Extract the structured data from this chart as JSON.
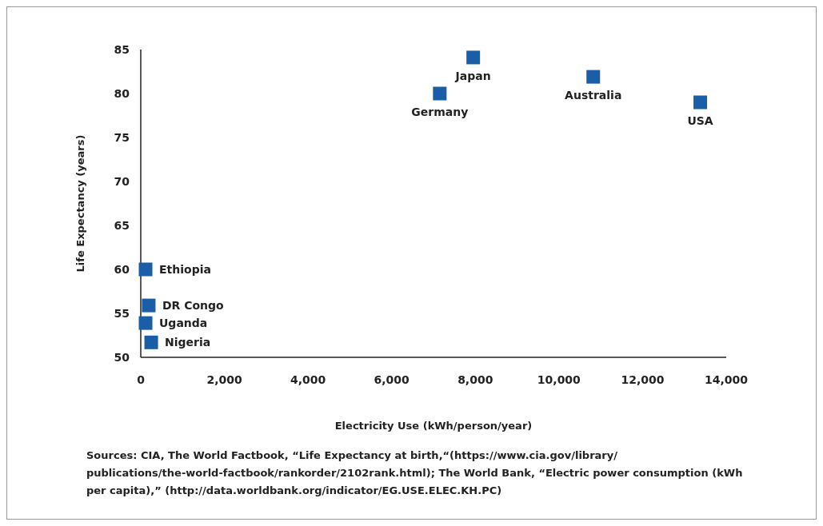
{
  "chart_data": {
    "type": "scatter",
    "xlabel": "Electricity Use (kWh/person/year)",
    "ylabel": "Life Expectancy (years)",
    "marker": "square",
    "grid": false,
    "xlim": [
      0,
      14000
    ],
    "xticks": [
      {
        "value": 0,
        "label": "0"
      },
      {
        "value": 2000,
        "label": "2,000"
      },
      {
        "value": 4000,
        "label": "4,000"
      },
      {
        "value": 6000,
        "label": "6,000"
      },
      {
        "value": 8000,
        "label": "8,000"
      },
      {
        "value": 10000,
        "label": "10,000"
      },
      {
        "value": 12000,
        "label": "12,000"
      },
      {
        "value": 14000,
        "label": "14,000"
      }
    ],
    "ylim": [
      50,
      85
    ],
    "yticks": [
      50,
      55,
      60,
      65,
      70,
      75,
      80,
      85
    ],
    "series": [
      {
        "name": "Japan",
        "color": "#1a5ea8",
        "x": [
          7950
        ],
        "values": [
          84.1
        ]
      },
      {
        "name": "Germany",
        "color": "#1a5ea8",
        "x": [
          7150
        ],
        "values": [
          80
        ]
      },
      {
        "name": "Australia",
        "color": "#1a5ea8",
        "x": [
          10820
        ],
        "values": [
          81.9
        ]
      },
      {
        "name": "USA",
        "color": "#1a5ea8",
        "x": [
          13380
        ],
        "values": [
          79
        ]
      },
      {
        "name": "Ethiopia",
        "color": "#1a5ea8",
        "x": [
          115
        ],
        "values": [
          60
        ]
      },
      {
        "name": "DR Congo",
        "color": "#1a5ea8",
        "x": [
          190
        ],
        "values": [
          55.9
        ]
      },
      {
        "name": "Uganda",
        "color": "#1a5ea8",
        "x": [
          115
        ],
        "values": [
          53.9
        ]
      },
      {
        "name": "Nigeria",
        "color": "#1a5ea8",
        "x": [
          250
        ],
        "values": [
          51.7
        ]
      }
    ],
    "annotations": [
      "Sources: CIA, The World Factbook, “Life Expectancy at birth,“(https://www.cia.gov/library/ publications/the-world-factbook/rankorder/2102rank.html); The World Bank, “Electric power consumption (kWh per capita),” (http://data.worldbank.org/indicator/EG.USE.ELEC.KH.PC)"
    ]
  }
}
